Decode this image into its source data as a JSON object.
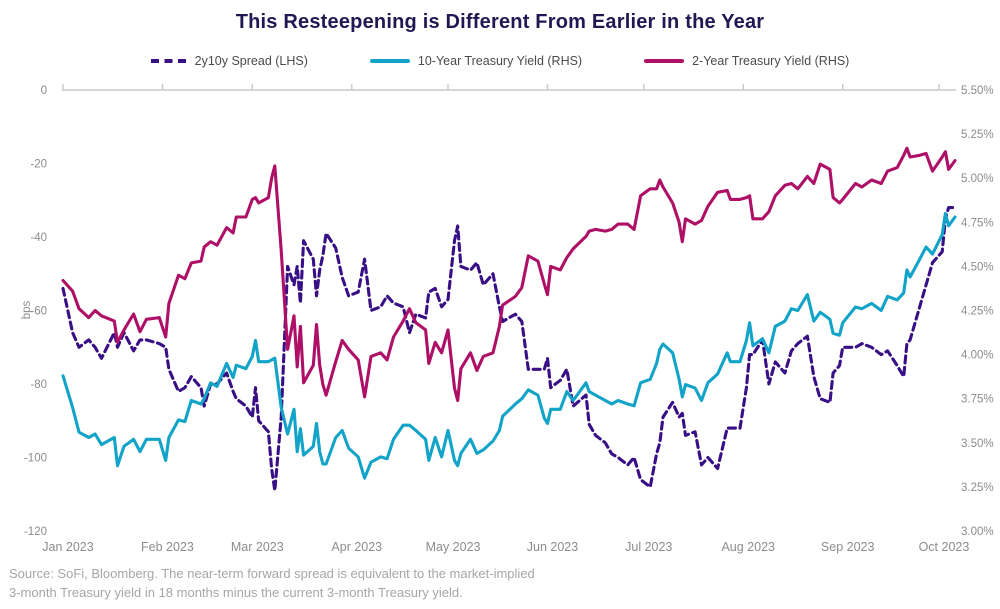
{
  "title": "This Resteepening is Different From Earlier in the Year",
  "source_note": {
    "line1": "Source: SoFi, Bloomberg. The near-term forward spread is equivalent to the market-implied",
    "line2": "3-month Treasury yield in 18 months minus the current 3-month Treasury yield."
  },
  "colors": {
    "title": "#201852",
    "axis_text": "#8c8c8c",
    "axis_line": "#c9c9c9",
    "legend_text": "#4b4b4b",
    "source_text": "#a6a6a6"
  },
  "axes": {
    "left_axis_label": "bps",
    "left_ticks": [
      0,
      -20,
      -40,
      -60,
      -80,
      -100,
      -120
    ],
    "right_ticks": [
      "5.50%",
      "5.25%",
      "5.00%",
      "4.75%",
      "4.50%",
      "4.25%",
      "4.00%",
      "3.75%",
      "3.50%",
      "3.25%",
      "3.00%"
    ],
    "x_ticks": [
      {
        "day": 1,
        "label": "Jan 2023"
      },
      {
        "day": 32,
        "label": "Feb 2023"
      },
      {
        "day": 60,
        "label": "Mar 2023"
      },
      {
        "day": 91,
        "label": "Apr 2023"
      },
      {
        "day": 121,
        "label": "May 2023"
      },
      {
        "day": 152,
        "label": "Jun 2023"
      },
      {
        "day": 182,
        "label": "Jul 2023"
      },
      {
        "day": 213,
        "label": "Aug 2023"
      },
      {
        "day": 244,
        "label": "Sep 2023"
      },
      {
        "day": 274,
        "label": "Oct 2023"
      }
    ]
  },
  "chart_data": {
    "type": "line",
    "title": "This Resteepening is Different From Earlier in the Year",
    "x_unit": "day_of_year_2023",
    "x_range_days": [
      1,
      279
    ],
    "left_axis": {
      "label": "bps",
      "range": [
        -120,
        0
      ]
    },
    "right_axis": {
      "label": "yield_percent",
      "range": [
        3.0,
        5.5
      ],
      "tick_step": 0.25
    },
    "legend_position": "top",
    "grid": false,
    "x": [
      1,
      4,
      6,
      9,
      11,
      13,
      17,
      18,
      20,
      23,
      25,
      27,
      31,
      33,
      34,
      37,
      39,
      41,
      44,
      45,
      47,
      49,
      52,
      54,
      55,
      58,
      60,
      61,
      62,
      65,
      66,
      67,
      69,
      71,
      73,
      74,
      75,
      76,
      79,
      80,
      81,
      82,
      83,
      86,
      88,
      90,
      93,
      95,
      97,
      100,
      102,
      104,
      107,
      109,
      111,
      114,
      115,
      117,
      119,
      121,
      123,
      124,
      125,
      128,
      130,
      132,
      135,
      137,
      138,
      142,
      144,
      146,
      149,
      151,
      152,
      153,
      156,
      158,
      160,
      164,
      165,
      167,
      170,
      172,
      174,
      177,
      179,
      181,
      184,
      186,
      187,
      188,
      191,
      193,
      194,
      195,
      198,
      200,
      202,
      205,
      208,
      209,
      212,
      214,
      215,
      216,
      219,
      221,
      223,
      226,
      228,
      230,
      233,
      235,
      237,
      240,
      241,
      243,
      244,
      248,
      250,
      253,
      256,
      258,
      261,
      263,
      264,
      265,
      268,
      270,
      272,
      275,
      276,
      277,
      279
    ],
    "series": [
      {
        "name": "2y10y Spread (LHS)",
        "axis": "left",
        "unit": "bps",
        "color": "#380f85",
        "style": "dashed",
        "values": [
          -54,
          -66,
          -70,
          -68,
          -70,
          -73,
          -66,
          -70,
          -66,
          -71,
          -68,
          -68,
          -69,
          -70,
          -76,
          -82,
          -81,
          -78,
          -81,
          -86,
          -80,
          -80,
          -77,
          -82,
          -84,
          -86,
          -89,
          -81,
          -90,
          -93,
          -103,
          -109,
          -89,
          -48,
          -53,
          -48,
          -58,
          -41,
          -46,
          -56,
          -49,
          -45,
          -39,
          -43,
          -51,
          -56,
          -55,
          -46,
          -60,
          -59,
          -56,
          -58,
          -59,
          -66,
          -61,
          -62,
          -55,
          -54,
          -59,
          -57,
          -41,
          -37,
          -48,
          -49,
          -47,
          -53,
          -50,
          -59,
          -63,
          -61,
          -63,
          -76,
          -76,
          -76,
          -73,
          -81,
          -79,
          -76,
          -86,
          -83,
          -91,
          -94,
          -96,
          -99,
          -100,
          -102,
          -100,
          -106,
          -108,
          -99,
          -96,
          -89,
          -85,
          -89,
          -88,
          -94,
          -93,
          -102,
          -100,
          -103,
          -92,
          -92,
          -92,
          -81,
          -72,
          -72,
          -68,
          -80,
          -74,
          -77,
          -71,
          -69,
          -67,
          -78,
          -84,
          -85,
          -77,
          -75,
          -70,
          -70,
          -69,
          -70,
          -72,
          -71,
          -75,
          -78,
          -69,
          -68,
          -59,
          -53,
          -47,
          -44,
          -35,
          -32,
          -32
        ]
      },
      {
        "name": "10-Year Treasury Yield (RHS)",
        "axis": "right",
        "unit": "%",
        "color": "#12a3c8",
        "style": "solid",
        "values": [
          3.88,
          3.7,
          3.56,
          3.53,
          3.55,
          3.49,
          3.53,
          3.37,
          3.48,
          3.52,
          3.45,
          3.52,
          3.52,
          3.4,
          3.53,
          3.63,
          3.62,
          3.74,
          3.72,
          3.75,
          3.84,
          3.82,
          3.95,
          3.87,
          3.94,
          3.92,
          3.99,
          4.08,
          3.96,
          3.96,
          3.97,
          3.98,
          3.7,
          3.55,
          3.69,
          3.45,
          3.58,
          3.43,
          3.48,
          3.61,
          3.45,
          3.38,
          3.38,
          3.53,
          3.57,
          3.47,
          3.42,
          3.3,
          3.39,
          3.42,
          3.41,
          3.52,
          3.6,
          3.6,
          3.57,
          3.52,
          3.4,
          3.53,
          3.42,
          3.57,
          3.4,
          3.37,
          3.44,
          3.52,
          3.44,
          3.46,
          3.51,
          3.57,
          3.65,
          3.72,
          3.75,
          3.8,
          3.77,
          3.64,
          3.61,
          3.69,
          3.69,
          3.79,
          3.74,
          3.84,
          3.79,
          3.77,
          3.74,
          3.72,
          3.74,
          3.72,
          3.71,
          3.84,
          3.86,
          3.95,
          4.03,
          4.06,
          4.01,
          3.86,
          3.76,
          3.83,
          3.81,
          3.74,
          3.84,
          3.89,
          4.01,
          3.96,
          3.96,
          4.08,
          4.18,
          4.05,
          4.09,
          4.01,
          4.16,
          4.19,
          4.26,
          4.25,
          4.34,
          4.19,
          4.24,
          4.2,
          4.12,
          4.11,
          4.18,
          4.27,
          4.26,
          4.29,
          4.25,
          4.33,
          4.31,
          4.35,
          4.48,
          4.44,
          4.54,
          4.61,
          4.57,
          4.68,
          4.8,
          4.73,
          4.78
        ]
      },
      {
        "name": "2-Year Treasury Yield (RHS)",
        "axis": "right",
        "unit": "%",
        "color": "#ad1066",
        "style": "solid",
        "values": [
          4.42,
          4.36,
          4.26,
          4.21,
          4.25,
          4.22,
          4.19,
          4.07,
          4.14,
          4.23,
          4.13,
          4.2,
          4.21,
          4.1,
          4.29,
          4.45,
          4.43,
          4.52,
          4.53,
          4.61,
          4.64,
          4.62,
          4.72,
          4.69,
          4.78,
          4.78,
          4.88,
          4.89,
          4.86,
          4.89,
          5.0,
          5.07,
          4.59,
          4.03,
          4.22,
          3.93,
          4.16,
          3.84,
          3.94,
          4.17,
          3.94,
          3.83,
          3.77,
          3.96,
          4.08,
          4.03,
          3.97,
          3.76,
          3.99,
          4.01,
          3.97,
          4.1,
          4.19,
          4.26,
          4.18,
          4.14,
          3.95,
          4.07,
          4.01,
          4.14,
          3.81,
          3.74,
          3.92,
          4.01,
          3.91,
          3.99,
          4.01,
          4.16,
          4.28,
          4.33,
          4.38,
          4.56,
          4.53,
          4.4,
          4.34,
          4.5,
          4.48,
          4.55,
          4.6,
          4.67,
          4.7,
          4.71,
          4.7,
          4.71,
          4.74,
          4.74,
          4.71,
          4.9,
          4.94,
          4.94,
          4.99,
          4.95,
          4.86,
          4.75,
          4.64,
          4.77,
          4.74,
          4.76,
          4.84,
          4.92,
          4.93,
          4.88,
          4.88,
          4.89,
          4.9,
          4.77,
          4.77,
          4.81,
          4.9,
          4.96,
          4.97,
          4.94,
          5.01,
          4.97,
          5.08,
          5.05,
          4.89,
          4.86,
          4.88,
          4.97,
          4.95,
          4.99,
          4.97,
          5.04,
          5.06,
          5.13,
          5.17,
          5.12,
          5.13,
          5.14,
          5.04,
          5.12,
          5.15,
          5.05,
          5.1
        ]
      }
    ]
  }
}
